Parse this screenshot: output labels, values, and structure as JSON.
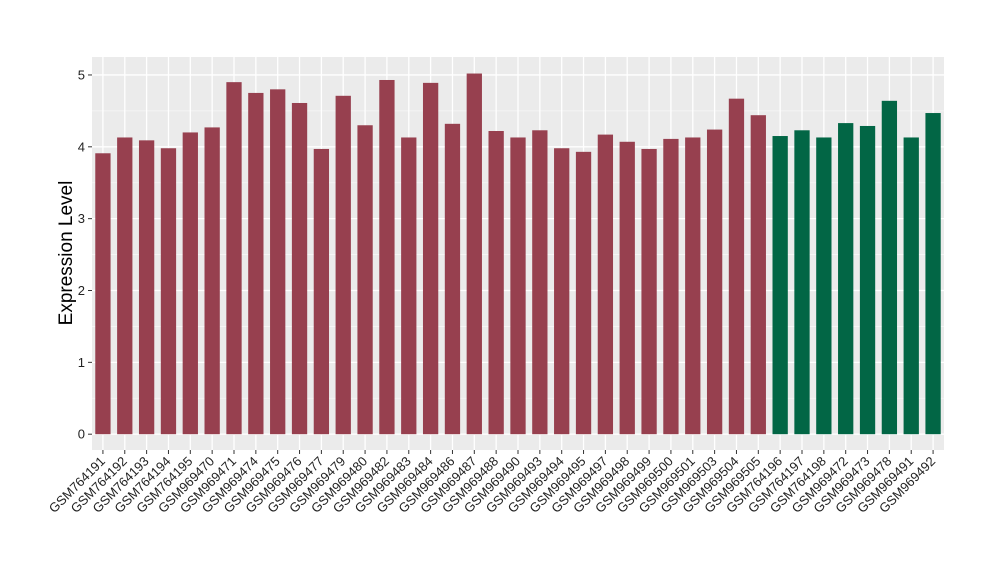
{
  "chart_data": {
    "type": "bar",
    "title": "",
    "xlabel": "",
    "ylabel": "Expression Level",
    "ylim": [
      -0.22,
      5.25
    ],
    "yticks": [
      0,
      1,
      2,
      3,
      4,
      5
    ],
    "grid": true,
    "background": "#ebebeb",
    "legend": "none",
    "categories": [
      "GSM764191",
      "GSM764192",
      "GSM764193",
      "GSM764194",
      "GSM764195",
      "GSM969470",
      "GSM969471",
      "GSM969474",
      "GSM969475",
      "GSM969476",
      "GSM969477",
      "GSM969479",
      "GSM969480",
      "GSM969482",
      "GSM969483",
      "GSM969484",
      "GSM969486",
      "GSM969487",
      "GSM969488",
      "GSM969490",
      "GSM969493",
      "GSM969494",
      "GSM969495",
      "GSM969497",
      "GSM969498",
      "GSM969499",
      "GSM969500",
      "GSM969501",
      "GSM969503",
      "GSM969504",
      "GSM969505",
      "GSM764196",
      "GSM764197",
      "GSM764198",
      "GSM969472",
      "GSM969473",
      "GSM969478",
      "GSM969491",
      "GSM969492"
    ],
    "values": [
      3.91,
      4.13,
      4.09,
      3.98,
      4.2,
      4.27,
      4.9,
      4.75,
      4.8,
      4.61,
      3.97,
      4.71,
      4.3,
      4.93,
      4.13,
      4.89,
      4.32,
      5.02,
      4.22,
      4.13,
      4.23,
      3.98,
      3.93,
      4.17,
      4.07,
      3.97,
      4.11,
      4.13,
      4.24,
      4.67,
      4.44,
      4.15,
      4.23,
      4.13,
      4.33,
      4.29,
      4.64,
      4.13,
      4.47
    ],
    "colors": [
      "#97404f",
      "#97404f",
      "#97404f",
      "#97404f",
      "#97404f",
      "#97404f",
      "#97404f",
      "#97404f",
      "#97404f",
      "#97404f",
      "#97404f",
      "#97404f",
      "#97404f",
      "#97404f",
      "#97404f",
      "#97404f",
      "#97404f",
      "#97404f",
      "#97404f",
      "#97404f",
      "#97404f",
      "#97404f",
      "#97404f",
      "#97404f",
      "#97404f",
      "#97404f",
      "#97404f",
      "#97404f",
      "#97404f",
      "#97404f",
      "#97404f",
      "#026645",
      "#026645",
      "#026645",
      "#026645",
      "#026645",
      "#026645",
      "#026645",
      "#026645"
    ]
  }
}
